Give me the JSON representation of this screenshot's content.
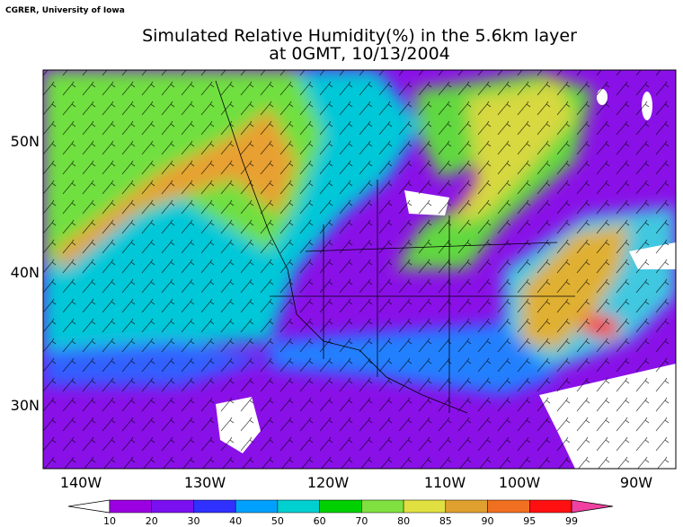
{
  "credit": "CGRER, University of Iowa",
  "title": [
    "Simulated Relative Humidity(%) in the 5.6km layer",
    "at 0GMT, 10/13/2004"
  ],
  "lat_labels": [
    "50N",
    "40N",
    "30N"
  ],
  "lon_labels": [
    "140W",
    "130W",
    "120W",
    "110W",
    "100W",
    "90W"
  ],
  "colorbar": {
    "levels": [
      10,
      20,
      30,
      40,
      50,
      60,
      70,
      80,
      85,
      90,
      95,
      99
    ],
    "colors": [
      "#ffffff",
      "#9a00e0",
      "#7a10f0",
      "#3030ff",
      "#00a0ff",
      "#00d0d0",
      "#00d000",
      "#80e040",
      "#e0e040",
      "#e0a030",
      "#f07020",
      "#ff1010",
      "#f040a0"
    ]
  }
}
